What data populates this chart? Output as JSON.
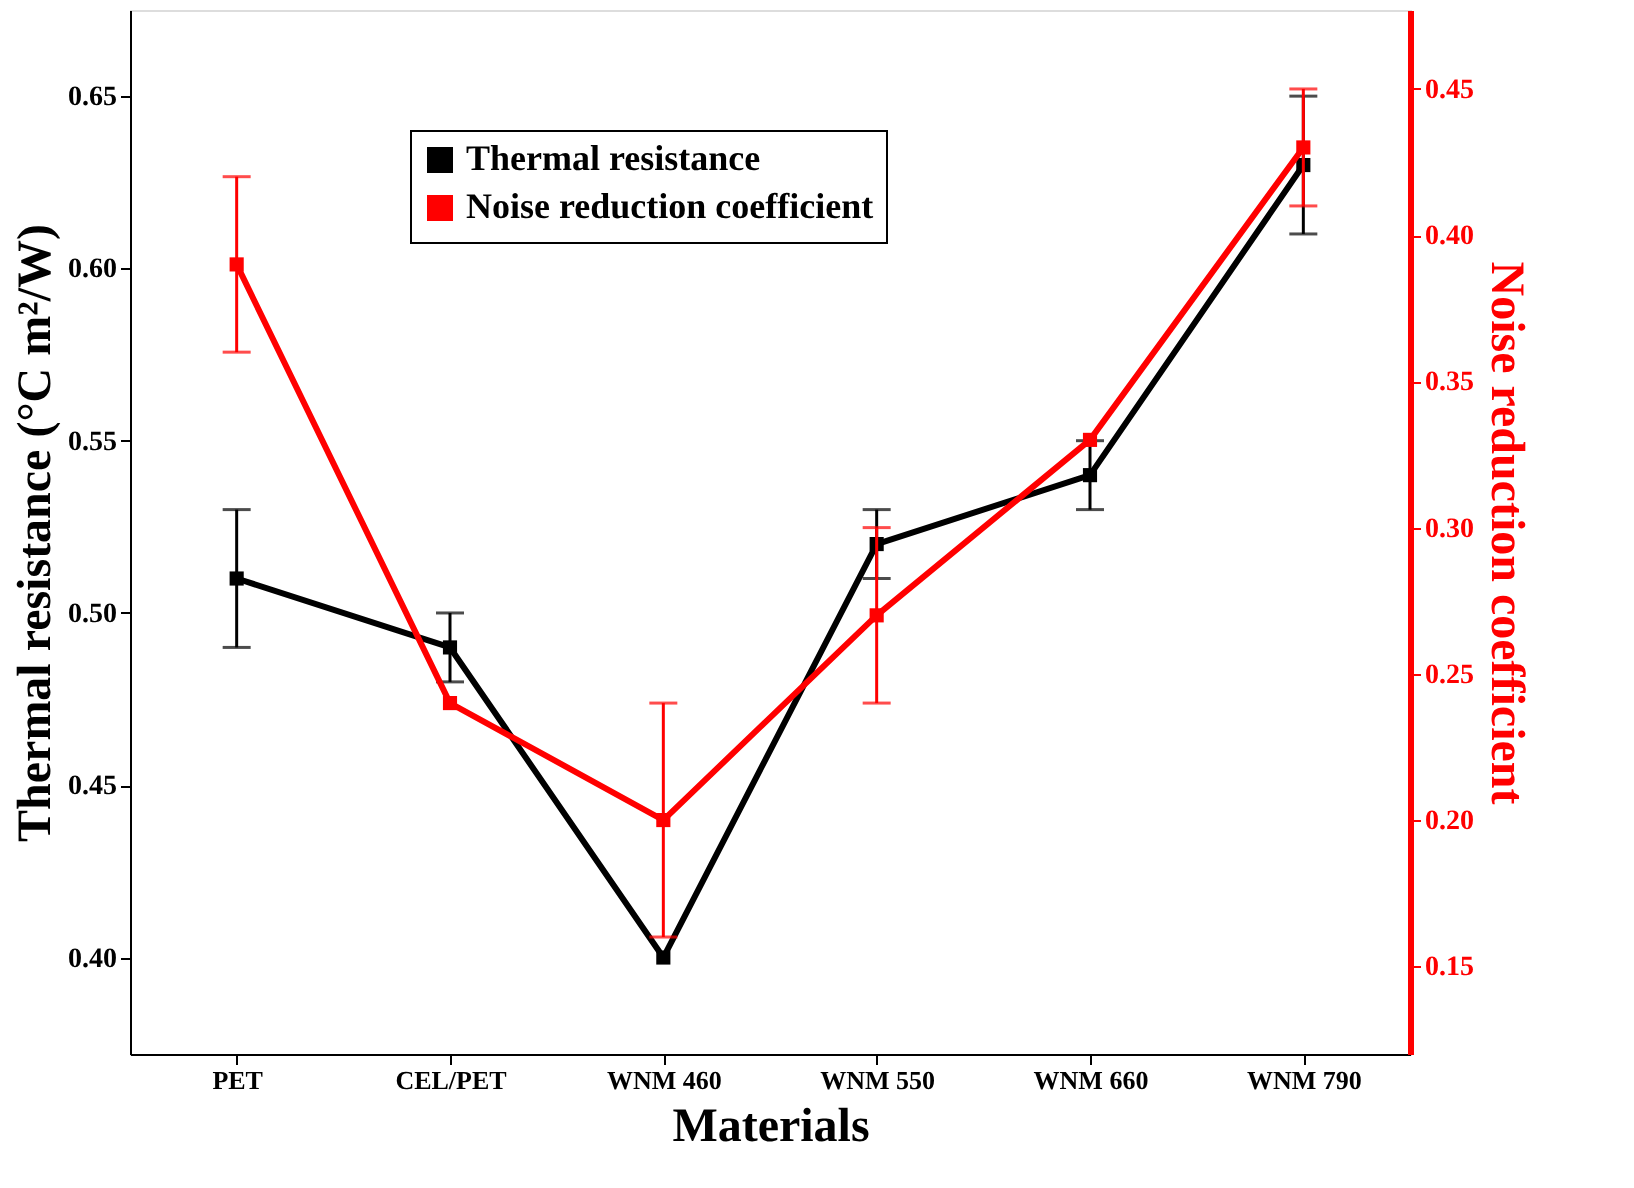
{
  "chart_data": {
    "type": "line",
    "xlabel": "Materials",
    "ylabel": "Thermal resistance (°C m²/W)",
    "y2label": "Noise reduction coefficient",
    "categories": [
      "PET",
      "CEL/PET",
      "WNM 460",
      "WNM 550",
      "WNM 660",
      "WNM 790"
    ],
    "series": [
      {
        "name": "Thermal resistance",
        "color": "#000000",
        "values": [
          0.51,
          0.49,
          0.4,
          0.52,
          0.54,
          0.63
        ],
        "errors": [
          0.02,
          0.01,
          null,
          0.01,
          0.01,
          0.02
        ]
      },
      {
        "name": "Noise reduction coefficient",
        "color": "#ff0000",
        "axis": "y2",
        "values": [
          0.39,
          0.24,
          0.2,
          0.27,
          0.33,
          0.43
        ],
        "errors": [
          0.03,
          null,
          0.04,
          0.03,
          null,
          0.02
        ]
      }
    ],
    "ylim": [
      0.372,
      0.675
    ],
    "yticks": [
      {
        "value": 0.4,
        "label": "0.40"
      },
      {
        "value": 0.45,
        "label": "0.45"
      },
      {
        "value": 0.5,
        "label": "0.50"
      },
      {
        "value": 0.55,
        "label": "0.55"
      },
      {
        "value": 0.6,
        "label": "0.60"
      },
      {
        "value": 0.65,
        "label": "0.65"
      }
    ],
    "y2lim": [
      0.12,
      0.477
    ],
    "y2ticks": [
      0.15,
      {
        "value": 0.2,
        "label": "0.20"
      },
      0.25,
      {
        "value": 0.3,
        "label": "0.30"
      },
      0.35,
      {
        "value": 0.4,
        "label": "0.40"
      },
      0.45
    ],
    "grid": false,
    "legend": "top",
    "marker": "square",
    "line_style": "solid"
  }
}
